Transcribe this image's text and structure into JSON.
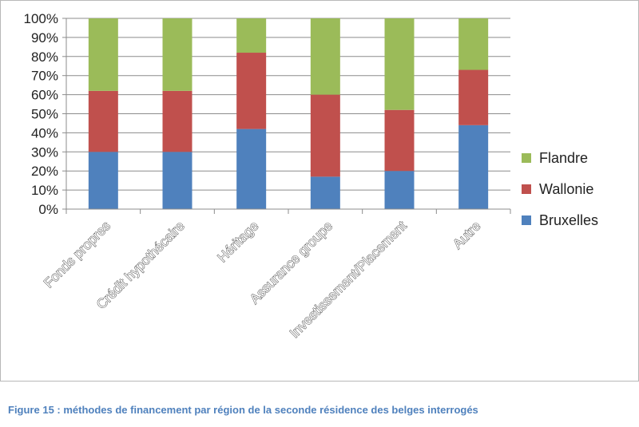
{
  "caption": "Figure 15 : méthodes de financement par région de la seconde résidence des belges interrogés",
  "chart_data": {
    "type": "bar",
    "stacked": true,
    "categories": [
      "Fonds propres",
      "Crédit hypothécaire",
      "Héritage",
      "Assurance groupe",
      "Investissement/Placement",
      "Autre"
    ],
    "series": [
      {
        "name": "Bruxelles",
        "color": "#4f81bd",
        "values": [
          30,
          30,
          42,
          17,
          20,
          44
        ]
      },
      {
        "name": "Wallonie",
        "color": "#c0504d",
        "values": [
          32,
          32,
          40,
          43,
          32,
          29
        ]
      },
      {
        "name": "Flandre",
        "color": "#9bbb59",
        "values": [
          38,
          38,
          18,
          40,
          48,
          27
        ]
      }
    ],
    "ylim": [
      0,
      100
    ],
    "yticks": [
      "0%",
      "10%",
      "20%",
      "30%",
      "40%",
      "50%",
      "60%",
      "70%",
      "80%",
      "90%",
      "100%"
    ],
    "grid": true,
    "legend_position": "right",
    "legend_order": [
      "Flandre",
      "Wallonie",
      "Bruxelles"
    ],
    "title": "",
    "xlabel": "",
    "ylabel": ""
  }
}
